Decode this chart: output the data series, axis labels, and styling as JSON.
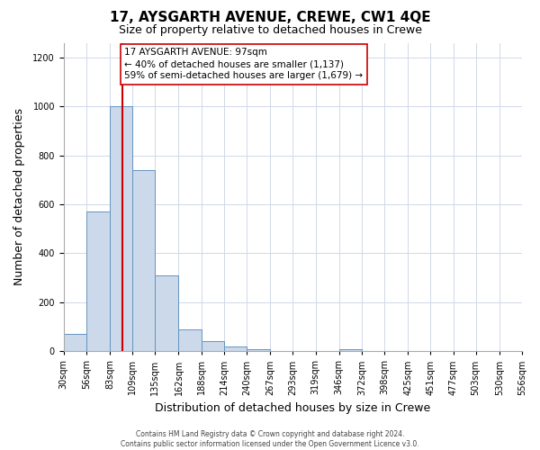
{
  "title": "17, AYSGARTH AVENUE, CREWE, CW1 4QE",
  "subtitle": "Size of property relative to detached houses in Crewe",
  "xlabel": "Distribution of detached houses by size in Crewe",
  "ylabel": "Number of detached properties",
  "bar_lefts": [
    30,
    56,
    83,
    109,
    135,
    162,
    188,
    214,
    240,
    267,
    293,
    319,
    346,
    372,
    398,
    425,
    451,
    477,
    503,
    530
  ],
  "bar_widths": [
    26,
    27,
    26,
    26,
    27,
    26,
    26,
    26,
    27,
    26,
    26,
    27,
    26,
    26,
    27,
    26,
    26,
    26,
    27,
    26
  ],
  "bar_heights": [
    70,
    570,
    1000,
    740,
    310,
    90,
    40,
    20,
    10,
    0,
    0,
    0,
    10,
    0,
    0,
    0,
    0,
    0,
    0,
    0
  ],
  "bar_color": "#ccd9ea",
  "bar_edge_color": "#6394c0",
  "property_value": 97,
  "vline_color": "#cc0000",
  "annotation_text": "17 AYSGARTH AVENUE: 97sqm\n← 40% of detached houses are smaller (1,137)\n59% of semi-detached houses are larger (1,679) →",
  "annotation_box_edgecolor": "#cc0000",
  "annotation_box_facecolor": "#ffffff",
  "ylim": [
    0,
    1260
  ],
  "yticks": [
    0,
    200,
    400,
    600,
    800,
    1000,
    1200
  ],
  "xlim": [
    30,
    556
  ],
  "xtick_positions": [
    30,
    56,
    83,
    109,
    135,
    162,
    188,
    214,
    240,
    267,
    293,
    319,
    346,
    372,
    398,
    425,
    451,
    477,
    503,
    530,
    556
  ],
  "xtick_labels": [
    "30sqm",
    "56sqm",
    "83sqm",
    "109sqm",
    "135sqm",
    "162sqm",
    "188sqm",
    "214sqm",
    "240sqm",
    "267sqm",
    "293sqm",
    "319sqm",
    "346sqm",
    "372sqm",
    "398sqm",
    "425sqm",
    "451sqm",
    "477sqm",
    "503sqm",
    "530sqm",
    "556sqm"
  ],
  "footer_line1": "Contains HM Land Registry data © Crown copyright and database right 2024.",
  "footer_line2": "Contains public sector information licensed under the Open Government Licence v3.0.",
  "bg_color": "#ffffff",
  "grid_color": "#d0d8e8",
  "title_fontsize": 11,
  "subtitle_fontsize": 9,
  "tick_label_fontsize": 7,
  "axis_label_fontsize": 9,
  "footer_fontsize": 5.5,
  "annotation_fontsize": 7.5
}
